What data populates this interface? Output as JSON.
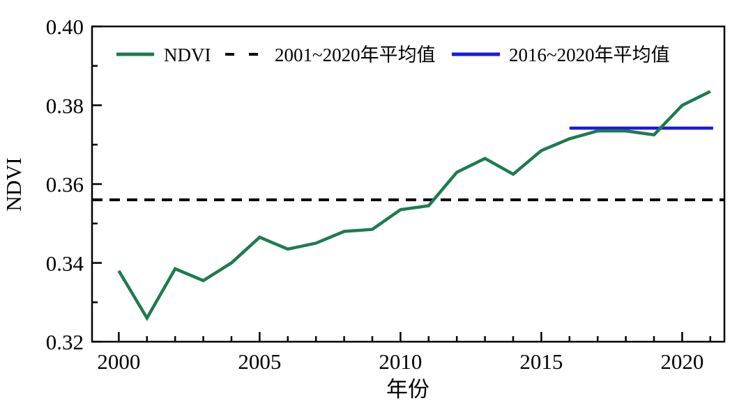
{
  "chart_data": {
    "type": "line",
    "title": "",
    "xlabel": "年份",
    "ylabel": "NDVI",
    "xlim": [
      1999.05,
      2021.5
    ],
    "ylim": [
      0.32,
      0.4
    ],
    "grid": false,
    "legend_position": "top-left-inside",
    "x": [
      2000,
      2001,
      2002,
      2003,
      2004,
      2005,
      2006,
      2007,
      2008,
      2009,
      2010,
      2011,
      2012,
      2013,
      2014,
      2015,
      2016,
      2017,
      2018,
      2019,
      2020,
      2021
    ],
    "series": [
      {
        "name": "NDVI",
        "color": "#1e7b4f",
        "values": [
          0.338,
          0.326,
          0.3385,
          0.3355,
          0.34,
          0.3465,
          0.3435,
          0.345,
          0.348,
          0.3485,
          0.3535,
          0.3545,
          0.363,
          0.3665,
          0.3625,
          0.3685,
          0.3715,
          0.3735,
          0.3735,
          0.3725,
          0.38,
          0.3835
        ]
      }
    ],
    "reference_lines": [
      {
        "name": "2001~2020年平均值",
        "slug": "avg-2001-2020-line",
        "value": 0.356,
        "style": "dashed",
        "color": "#000000",
        "span": [
          1999.05,
          2021.5
        ]
      },
      {
        "name": "2016~2020年平均值",
        "slug": "avg-2016-2020-line",
        "value": 0.3742,
        "style": "solid",
        "color": "#1a1adc",
        "span": [
          2016,
          2021.1
        ]
      }
    ],
    "x_major_ticks": [
      2000,
      2005,
      2010,
      2015,
      2020
    ],
    "x_tick_labels": [
      "2000",
      "2005",
      "2010",
      "2015",
      "2020"
    ],
    "x_minor_ticks": [
      2001,
      2002,
      2003,
      2004,
      2006,
      2007,
      2008,
      2009,
      2011,
      2012,
      2013,
      2014,
      2016,
      2017,
      2018,
      2019,
      2021
    ],
    "y_major_ticks": [
      0.32,
      0.34,
      0.36,
      0.38,
      0.4
    ],
    "y_tick_labels": [
      "0.32",
      "0.34",
      "0.36",
      "0.38",
      "0.40"
    ],
    "y_minor_ticks": [
      0.33,
      0.35,
      0.37,
      0.39
    ]
  },
  "axes": {
    "x_title": "年份",
    "y_title": "NDVI"
  },
  "legend": {
    "items": [
      {
        "label": "NDVI",
        "swatch": "solid-green-line",
        "color": "#1e7b4f"
      },
      {
        "label": "2001~2020年平均值",
        "swatch": "dashed-black-line",
        "color": "#000000"
      },
      {
        "label": "2016~2020年平均值",
        "swatch": "solid-blue-line",
        "color": "#1a1adc"
      }
    ]
  }
}
